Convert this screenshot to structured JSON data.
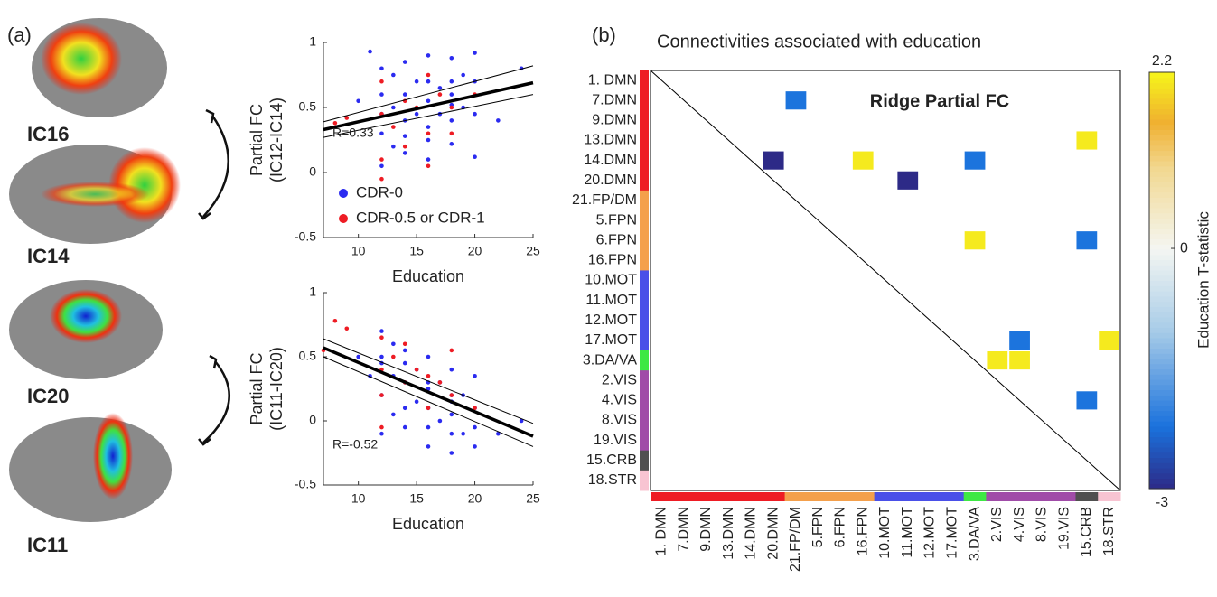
{
  "figure": {
    "panel_labels": [
      "(a)",
      "(b)"
    ],
    "brain_labels": [
      "IC16",
      "IC14",
      "IC20",
      "IC11"
    ]
  },
  "chart_data": [
    {
      "type": "scatter",
      "xlabel": "Education",
      "ylabel": [
        "Partial FC",
        "(IC12-IC14)"
      ],
      "xlim": [
        7,
        25
      ],
      "ylim": [
        -0.5,
        1
      ],
      "xticks": [
        10,
        15,
        20,
        25
      ],
      "yticks": [
        -0.5,
        0,
        0.5,
        1
      ],
      "legend": "lower left",
      "annotation": "R=0.33",
      "series": [
        {
          "name": "CDR-0",
          "color": "#2b2bf0",
          "x": [
            10,
            11,
            12,
            12,
            12,
            12,
            13,
            13,
            13,
            14,
            14,
            14,
            14,
            15,
            15,
            16,
            16,
            16,
            16,
            16,
            17,
            17,
            18,
            18,
            18,
            18,
            18,
            19,
            19,
            20,
            20,
            20,
            20,
            22,
            24,
            12,
            14,
            16,
            18
          ],
          "values": [
            0.55,
            0.93,
            0.8,
            0.6,
            0.3,
            0.05,
            0.75,
            0.5,
            0.2,
            0.85,
            0.6,
            0.4,
            0.15,
            0.7,
            0.45,
            0.9,
            0.7,
            0.55,
            0.35,
            0.1,
            0.65,
            0.45,
            0.88,
            0.7,
            0.6,
            0.4,
            0.22,
            0.75,
            0.5,
            0.92,
            0.7,
            0.45,
            0.12,
            0.4,
            0.8,
            0.45,
            0.28,
            0.25,
            0.52
          ]
        },
        {
          "name": "CDR-0.5 or CDR-1",
          "color": "#ee1c24",
          "x": [
            8,
            9,
            12,
            12,
            12,
            13,
            14,
            14,
            15,
            16,
            16,
            17,
            18,
            18,
            20,
            12,
            16
          ],
          "values": [
            0.38,
            0.42,
            0.7,
            0.45,
            -0.05,
            0.35,
            0.55,
            0.2,
            0.5,
            0.75,
            0.3,
            0.6,
            0.5,
            0.3,
            0.6,
            0.1,
            0.05
          ]
        }
      ],
      "trend": {
        "x": [
          7,
          25
        ],
        "y": [
          0.33,
          0.69
        ],
        "ci_lower": [
          0.27,
          0.6
        ],
        "ci_upper": [
          0.39,
          0.82
        ]
      }
    },
    {
      "type": "scatter",
      "xlabel": "Education",
      "ylabel": [
        "Partial FC",
        "(IC11-IC20)"
      ],
      "xlim": [
        7,
        25
      ],
      "ylim": [
        -0.5,
        1
      ],
      "xticks": [
        10,
        15,
        20,
        25
      ],
      "yticks": [
        -0.5,
        0,
        0.5,
        1
      ],
      "annotation": "R=-0.52",
      "series": [
        {
          "color": "#2b2bf0",
          "x": [
            10,
            11,
            12,
            12,
            12,
            12,
            13,
            13,
            13,
            14,
            14,
            14,
            14,
            15,
            15,
            16,
            16,
            16,
            16,
            16,
            17,
            17,
            18,
            18,
            18,
            18,
            18,
            19,
            19,
            20,
            20,
            20,
            20,
            22,
            24,
            12,
            14,
            16,
            18
          ],
          "values": [
            0.5,
            0.35,
            0.7,
            0.45,
            0.2,
            -0.1,
            0.6,
            0.35,
            0.05,
            0.55,
            0.3,
            0.1,
            -0.05,
            0.4,
            0.15,
            0.5,
            0.25,
            0.1,
            -0.05,
            -0.2,
            0.3,
            0,
            0.4,
            0.2,
            0.05,
            -0.1,
            -0.25,
            0.2,
            -0.1,
            0.35,
            0.1,
            -0.05,
            -0.2,
            -0.1,
            0,
            0.5,
            0.45,
            0.3,
            0.15
          ]
        },
        {
          "color": "#ee1c24",
          "x": [
            7,
            8,
            9,
            12,
            12,
            12,
            13,
            14,
            14,
            15,
            16,
            16,
            17,
            18,
            18,
            20,
            12
          ],
          "values": [
            0.55,
            0.78,
            0.72,
            0.65,
            0.4,
            0.2,
            0.5,
            0.6,
            0.3,
            0.4,
            0.35,
            0.1,
            0.3,
            0.55,
            0.2,
            0.1,
            -0.05
          ]
        }
      ],
      "trend": {
        "x": [
          7,
          25
        ],
        "y": [
          0.57,
          -0.12
        ],
        "ci_lower": [
          0.5,
          -0.2
        ],
        "ci_upper": [
          0.64,
          -0.02
        ]
      }
    },
    {
      "type": "heatmap",
      "title": "Connectivities associated with education",
      "annotation": "Ridge Partial FC",
      "row_labels": [
        "1. DMN",
        "7.DMN",
        "9.DMN",
        "13.DMN",
        "14.DMN",
        "20.DMN",
        "21.FP/DM",
        "5.FPN",
        "6.FPN",
        "16.FPN",
        "10.MOT",
        "11.MOT",
        "12.MOT",
        "17.MOT",
        "3.DA/VA",
        "2.VIS",
        "4.VIS",
        "8.VIS",
        "19.VIS",
        "15.CRB",
        "18.STR"
      ],
      "col_labels": [
        "1. DMN",
        "7.DMN",
        "9.DMN",
        "13.DMN",
        "14.DMN",
        "20.DMN",
        "21.FP/DM",
        "5.FPN",
        "6.FPN",
        "16.FPN",
        "10.MOT",
        "11.MOT",
        "12.MOT",
        "17.MOT",
        "3.DA/VA",
        "2.VIS",
        "4.VIS",
        "8.VIS",
        "19.VIS",
        "15.CRB",
        "18.STR"
      ],
      "label_colors": [
        "#ee1c24",
        "#ee1c24",
        "#ee1c24",
        "#ee1c24",
        "#ee1c24",
        "#ee1c24",
        "#f4a04c",
        "#f4a04c",
        "#f4a04c",
        "#f4a04c",
        "#4a50e8",
        "#4a50e8",
        "#4a50e8",
        "#4a50e8",
        "#3ee844",
        "#a04ca8",
        "#a04ca8",
        "#a04ca8",
        "#a04ca8",
        "#505050",
        "#f8c4d2"
      ],
      "cells": [
        {
          "row": 1,
          "col": 6,
          "value": -2.2
        },
        {
          "row": 3,
          "col": 19,
          "value": 2.1
        },
        {
          "row": 4,
          "col": 5,
          "value": -3
        },
        {
          "row": 4,
          "col": 9,
          "value": 2.1
        },
        {
          "row": 4,
          "col": 14,
          "value": -2.2
        },
        {
          "row": 5,
          "col": 11,
          "value": -3
        },
        {
          "row": 8,
          "col": 14,
          "value": 2.1
        },
        {
          "row": 8,
          "col": 19,
          "value": -2.2
        },
        {
          "row": 13,
          "col": 16,
          "value": -2.2
        },
        {
          "row": 13,
          "col": 20,
          "value": 2.1
        },
        {
          "row": 14,
          "col": 15,
          "value": 2.1
        },
        {
          "row": 14,
          "col": 16,
          "value": 2.1
        },
        {
          "row": 16,
          "col": 19,
          "value": -2.2
        }
      ],
      "colorbar": {
        "label": "Education T-statistic",
        "lim": [
          -3,
          2.2
        ],
        "ticks": [
          2.2,
          0,
          -3
        ]
      }
    }
  ]
}
